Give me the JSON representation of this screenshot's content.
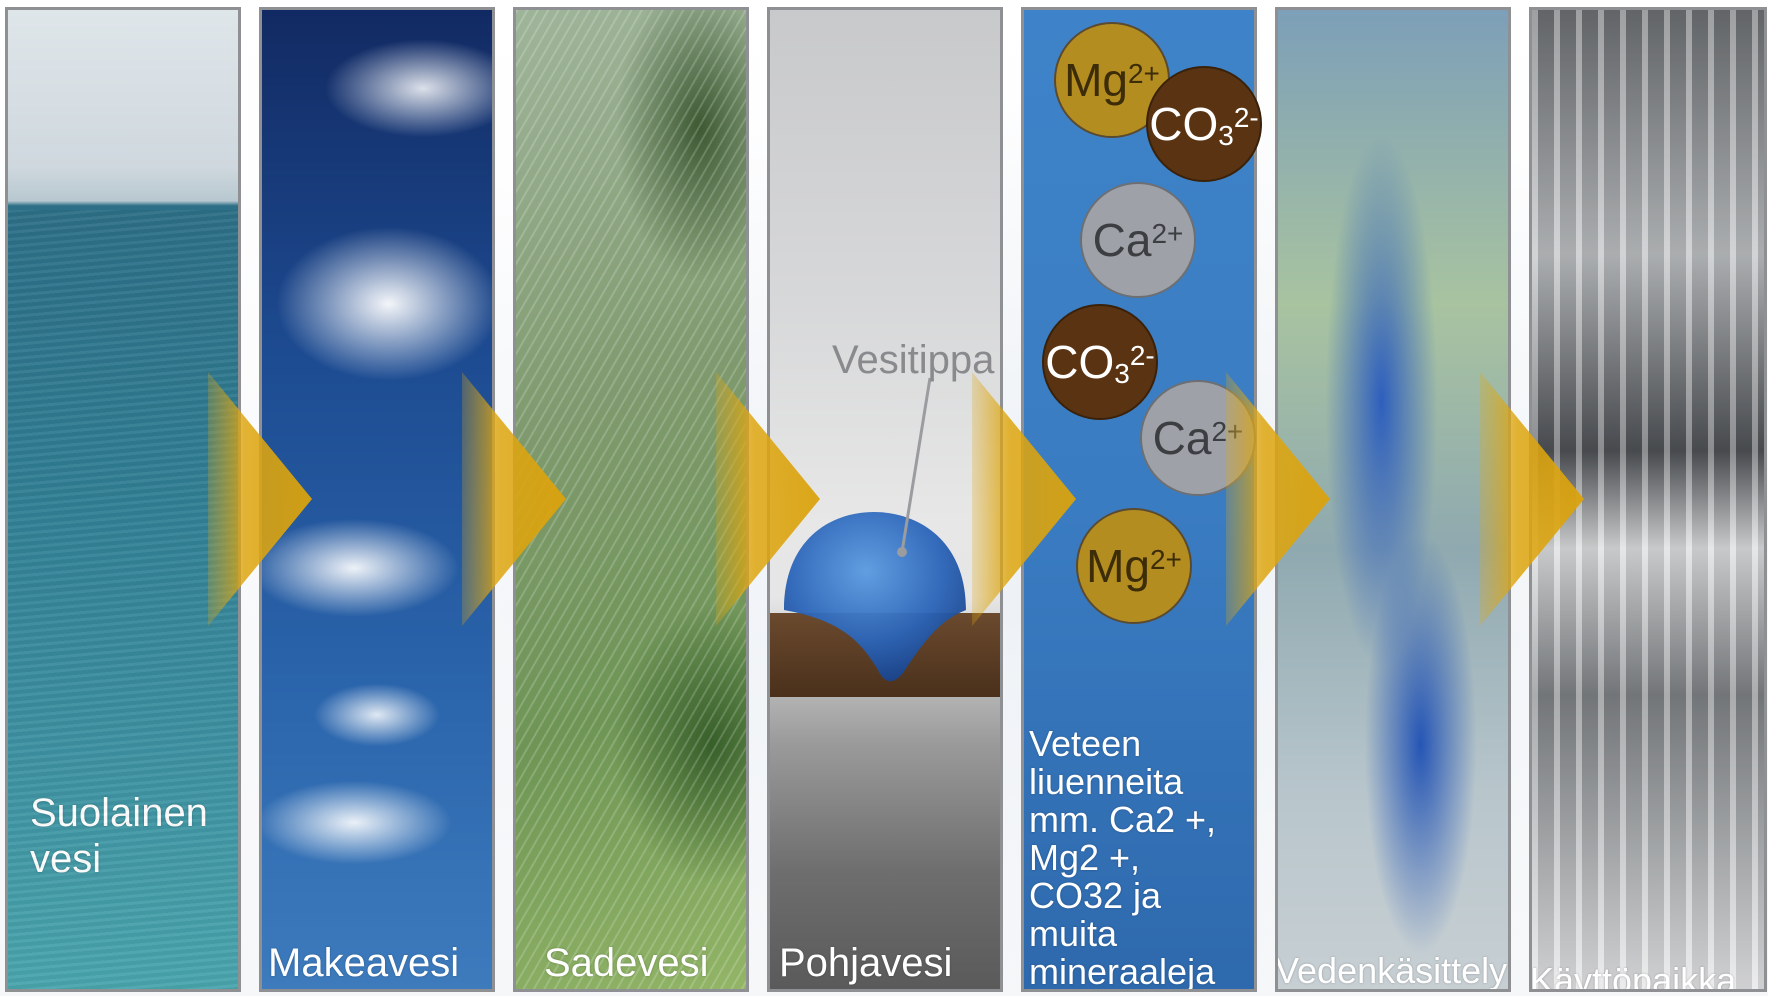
{
  "panels": [
    {
      "label": "Suolainen vesi",
      "line1": "Suolainen",
      "line2": "vesi"
    },
    {
      "label": "Makeavesi"
    },
    {
      "label": "Sadevesi"
    },
    {
      "label": "Pohjavesi",
      "droplet_label": "Vesitippa"
    },
    {
      "description_lines": [
        "Veteen",
        "liuenneita",
        "mm. Ca2 +,",
        "Mg2 +,",
        "CO32 ja",
        "muita",
        "mineraaleja"
      ]
    },
    {
      "label": "Vedenkäsittely"
    },
    {
      "label": "Käyttöpaikka"
    }
  ],
  "ions": [
    {
      "base": "Mg",
      "sup": "2+",
      "sub": ""
    },
    {
      "base": "CO",
      "sub": "3",
      "sup": "2-"
    },
    {
      "base": "Ca",
      "sup": "2+",
      "sub": ""
    },
    {
      "base": "CO",
      "sub": "3",
      "sup": "2-"
    },
    {
      "base": "Ca",
      "sup": "2+",
      "sub": ""
    },
    {
      "base": "Mg",
      "sup": "2+",
      "sub": ""
    }
  ],
  "colors": {
    "arrow": "#DAA20C",
    "ion_mg": "#B48D21",
    "ion_co3": "#5A3412",
    "ion_ca": "#9EA2A8",
    "panel_border": "#8E9093"
  }
}
